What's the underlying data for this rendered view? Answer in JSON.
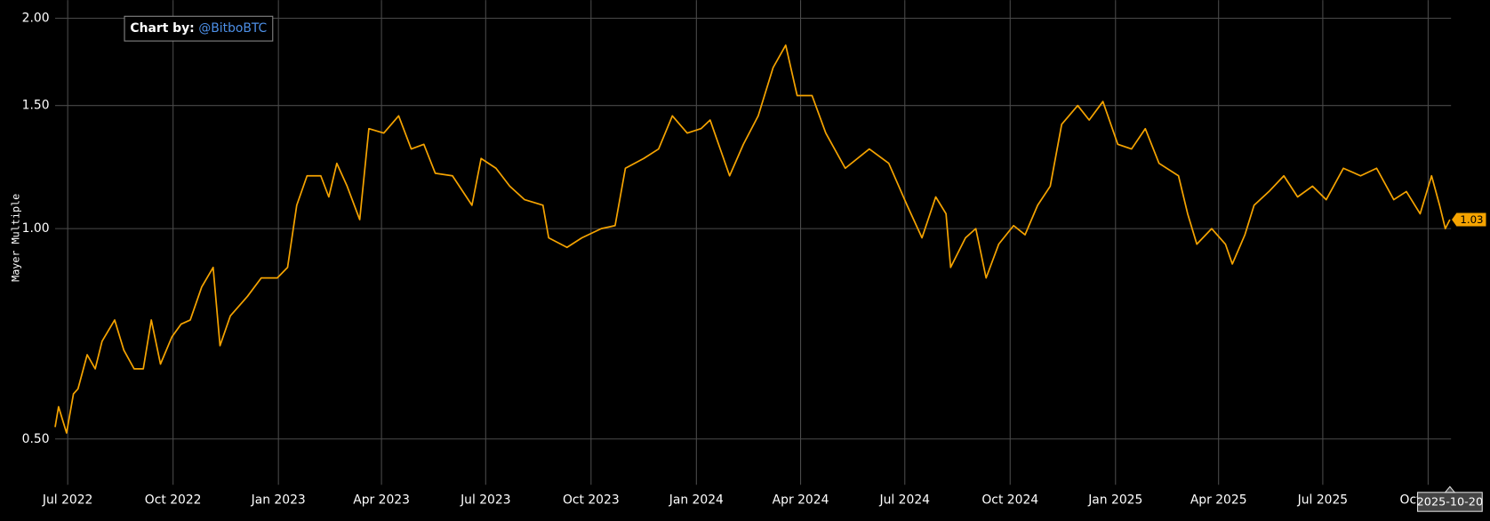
{
  "chart_data": {
    "type": "line",
    "y_label": "Mayer Multiple",
    "annotation": {
      "prefix": "Chart by:",
      "handle": "@BitboBTC"
    },
    "log_scale": true,
    "grid": true,
    "x": [
      "2022-06-20",
      "2022-06-23",
      "2022-06-30",
      "2022-07-06",
      "2022-07-10",
      "2022-07-18",
      "2022-07-25",
      "2022-07-31",
      "2022-08-11",
      "2022-08-19",
      "2022-08-28",
      "2022-09-05",
      "2022-09-12",
      "2022-09-20",
      "2022-09-30",
      "2022-10-08",
      "2022-10-16",
      "2022-10-26",
      "2022-11-05",
      "2022-11-11",
      "2022-11-20",
      "2022-12-05",
      "2022-12-17",
      "2022-12-31",
      "2023-01-09",
      "2023-01-17",
      "2023-01-26",
      "2023-02-07",
      "2023-02-14",
      "2023-02-21",
      "2023-03-02",
      "2023-03-13",
      "2023-03-21",
      "2023-04-03",
      "2023-04-16",
      "2023-04-27",
      "2023-05-08",
      "2023-05-18",
      "2023-06-02",
      "2023-06-19",
      "2023-06-27",
      "2023-07-10",
      "2023-07-22",
      "2023-08-04",
      "2023-08-20",
      "2023-08-25",
      "2023-09-10",
      "2023-09-23",
      "2023-10-10",
      "2023-10-22",
      "2023-10-31",
      "2023-11-16",
      "2023-11-29",
      "2023-12-11",
      "2023-12-24",
      "2024-01-05",
      "2024-01-13",
      "2024-01-30",
      "2024-02-11",
      "2024-02-24",
      "2024-03-08",
      "2024-03-19",
      "2024-03-29",
      "2024-04-11",
      "2024-04-23",
      "2024-05-10",
      "2024-05-31",
      "2024-06-17",
      "2024-07-03",
      "2024-07-16",
      "2024-07-28",
      "2024-08-06",
      "2024-08-10",
      "2024-08-23",
      "2024-09-01",
      "2024-09-10",
      "2024-09-21",
      "2024-10-04",
      "2024-10-14",
      "2024-10-25",
      "2024-11-05",
      "2024-11-15",
      "2024-11-29",
      "2024-12-09",
      "2024-12-21",
      "2025-01-03",
      "2025-01-15",
      "2025-01-27",
      "2025-02-08",
      "2025-02-25",
      "2025-03-05",
      "2025-03-13",
      "2025-03-26",
      "2025-04-07",
      "2025-04-13",
      "2025-04-24",
      "2025-05-02",
      "2025-05-15",
      "2025-05-28",
      "2025-06-09",
      "2025-06-22",
      "2025-07-04",
      "2025-07-19",
      "2025-08-03",
      "2025-08-17",
      "2025-09-01",
      "2025-09-12",
      "2025-09-24",
      "2025-10-04",
      "2025-10-11",
      "2025-10-16",
      "2025-10-20"
    ],
    "series": [
      {
        "name": "Mayer Multiple",
        "color": "#f5a300",
        "values": [
          0.52,
          0.556,
          0.51,
          0.58,
          0.59,
          0.66,
          0.63,
          0.69,
          0.74,
          0.67,
          0.63,
          0.63,
          0.74,
          0.64,
          0.7,
          0.73,
          0.74,
          0.825,
          0.88,
          0.68,
          0.75,
          0.8,
          0.85,
          0.85,
          0.88,
          1.08,
          1.19,
          1.19,
          1.11,
          1.24,
          1.15,
          1.03,
          1.39,
          1.37,
          1.45,
          1.3,
          1.32,
          1.2,
          1.19,
          1.08,
          1.26,
          1.22,
          1.15,
          1.1,
          1.08,
          0.97,
          0.94,
          0.97,
          1.0,
          1.01,
          1.22,
          1.26,
          1.3,
          1.45,
          1.37,
          1.39,
          1.43,
          1.19,
          1.32,
          1.45,
          1.7,
          1.83,
          1.55,
          1.55,
          1.37,
          1.22,
          1.3,
          1.24,
          1.08,
          0.97,
          1.11,
          1.05,
          0.88,
          0.97,
          1.0,
          0.85,
          0.95,
          1.01,
          0.98,
          1.08,
          1.15,
          1.41,
          1.5,
          1.43,
          1.52,
          1.32,
          1.3,
          1.39,
          1.24,
          1.19,
          1.05,
          0.95,
          1.0,
          0.95,
          0.89,
          0.98,
          1.08,
          1.13,
          1.19,
          1.11,
          1.15,
          1.1,
          1.22,
          1.19,
          1.22,
          1.1,
          1.13,
          1.05,
          1.19,
          1.08,
          1.0,
          1.03
        ]
      }
    ],
    "end_value_label": "1.03",
    "end_date_label": "2025-10-20",
    "xlim": [
      "2022-06-20",
      "2025-10-21"
    ],
    "xticks": [
      {
        "value": "2022-07-01",
        "label": "Jul 2022"
      },
      {
        "value": "2022-10-01",
        "label": "Oct 2022"
      },
      {
        "value": "2023-01-01",
        "label": "Jan 2023"
      },
      {
        "value": "2023-04-01",
        "label": "Apr 2023"
      },
      {
        "value": "2023-07-01",
        "label": "Jul 2023"
      },
      {
        "value": "2023-10-01",
        "label": "Oct 2023"
      },
      {
        "value": "2024-01-01",
        "label": "Jan 2024"
      },
      {
        "value": "2024-04-01",
        "label": "Apr 2024"
      },
      {
        "value": "2024-07-01",
        "label": "Jul 2024"
      },
      {
        "value": "2024-10-01",
        "label": "Oct 2024"
      },
      {
        "value": "2025-01-01",
        "label": "Jan 2025"
      },
      {
        "value": "2025-04-01",
        "label": "Apr 2025"
      },
      {
        "value": "2025-07-01",
        "label": "Jul 2025"
      },
      {
        "value": "2025-10-01",
        "label": "Oct 2025"
      }
    ],
    "ylim": [
      0.43,
      2.09
    ],
    "yticks": [
      {
        "value": 0.5,
        "label": "0.50"
      },
      {
        "value": 1,
        "label": "1.00"
      },
      {
        "value": 1.5,
        "label": "1.50"
      },
      {
        "value": 2,
        "label": "2.00"
      }
    ]
  }
}
